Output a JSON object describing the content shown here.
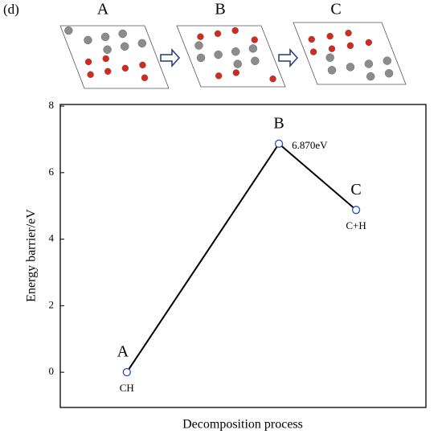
{
  "panel_label": "(d)",
  "structures": [
    "A",
    "B",
    "C"
  ],
  "chart_data": {
    "type": "line",
    "categories": [
      "A",
      "B",
      "C"
    ],
    "values": [
      0,
      6.87,
      4.88
    ],
    "value_labels": [
      null,
      "6.870eV",
      null
    ],
    "species": [
      "CH",
      null,
      "C+H"
    ],
    "color": "#000000",
    "marker_color": "#2a4fbf",
    "xlabel": "Decomposition process",
    "ylabel": "Energy barrier/eV",
    "ylim": [
      -1.06,
      8.05
    ],
    "yticks": [
      0,
      2,
      4,
      6,
      8
    ],
    "grid": false
  }
}
